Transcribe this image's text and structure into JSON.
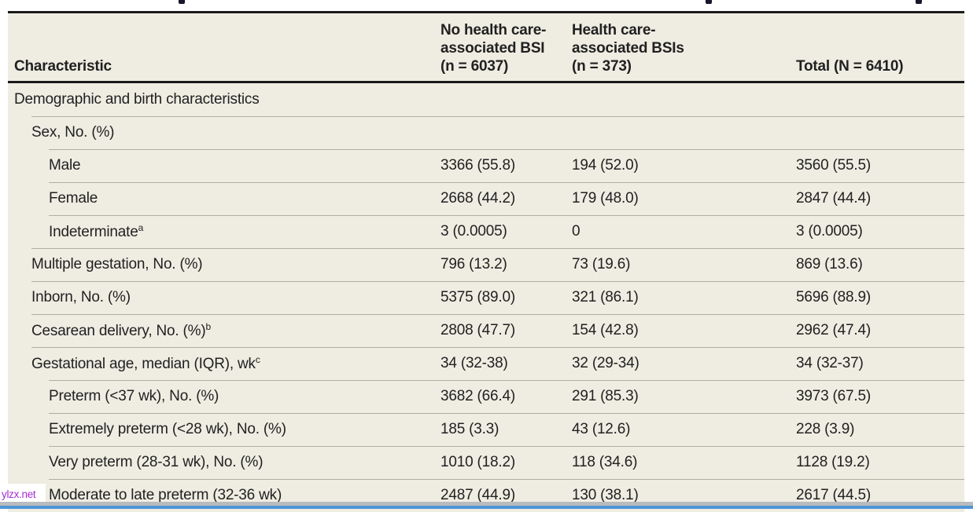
{
  "watermark": {
    "text": "ylzx.net"
  },
  "table": {
    "columns": {
      "characteristic": "Characteristic",
      "no_bsi": "No health care-\nassociated BSI\n(n = 6037)",
      "bsi": "Health care-\nassociated BSIs\n(n = 373)",
      "total": "Total (N = 6410)"
    },
    "rows": [
      {
        "label": "Demographic and birth characteristics",
        "values": [
          "",
          "",
          ""
        ]
      },
      {
        "label": "Sex, No. (%)",
        "values": [
          "",
          "",
          ""
        ]
      },
      {
        "label": "Male",
        "values": [
          "3366 (55.8)",
          "194 (52.0)",
          "3560 (55.5)"
        ]
      },
      {
        "label": "Female",
        "values": [
          "2668 (44.2)",
          "179 (48.0)",
          "2847 (44.4)"
        ]
      },
      {
        "label": "Indeterminate",
        "sup": "a",
        "values": [
          "3 (0.0005)",
          "0",
          "3 (0.0005)"
        ]
      },
      {
        "label": "Multiple gestation, No. (%)",
        "values": [
          "796 (13.2)",
          "73 (19.6)",
          "869 (13.6)"
        ]
      },
      {
        "label": "Inborn, No. (%)",
        "values": [
          "5375 (89.0)",
          "321 (86.1)",
          "5696 (88.9)"
        ]
      },
      {
        "label": "Cesarean delivery, No. (%)",
        "sup": "b",
        "values": [
          "2808 (47.7)",
          "154 (42.8)",
          "2962 (47.4)"
        ]
      },
      {
        "label": "Gestational age, median (IQR), wk",
        "sup": "c",
        "values": [
          "34 (32-38)",
          "32 (29-34)",
          "34 (32-37)"
        ]
      },
      {
        "label": "Preterm (<37 wk), No. (%)",
        "values": [
          "3682 (66.4)",
          "291 (85.3)",
          "3973 (67.5)"
        ]
      },
      {
        "label": "Extremely preterm (<28 wk), No. (%)",
        "values": [
          "185 (3.3)",
          "43 (12.6)",
          "228 (3.9)"
        ]
      },
      {
        "label": "Very preterm (28-31 wk), No. (%)",
        "values": [
          "1010 (18.2)",
          "118 (34.6)",
          "1128 (19.2)"
        ]
      },
      {
        "label": "Moderate to late preterm (32-36 wk)",
        "values": [
          "2487 (44.9)",
          "130 (38.1)",
          "2617 (44.5)"
        ]
      }
    ]
  },
  "colors": {
    "table_background": "#efede2",
    "rule_black": "#1b1b1b",
    "separator_gray": "#b0aea4",
    "text": "#212121",
    "watermark_purple": "#a62bd4",
    "bottom_strip_gray": "#b9bcbe",
    "bottom_strip_blue": "#4f94d6"
  }
}
